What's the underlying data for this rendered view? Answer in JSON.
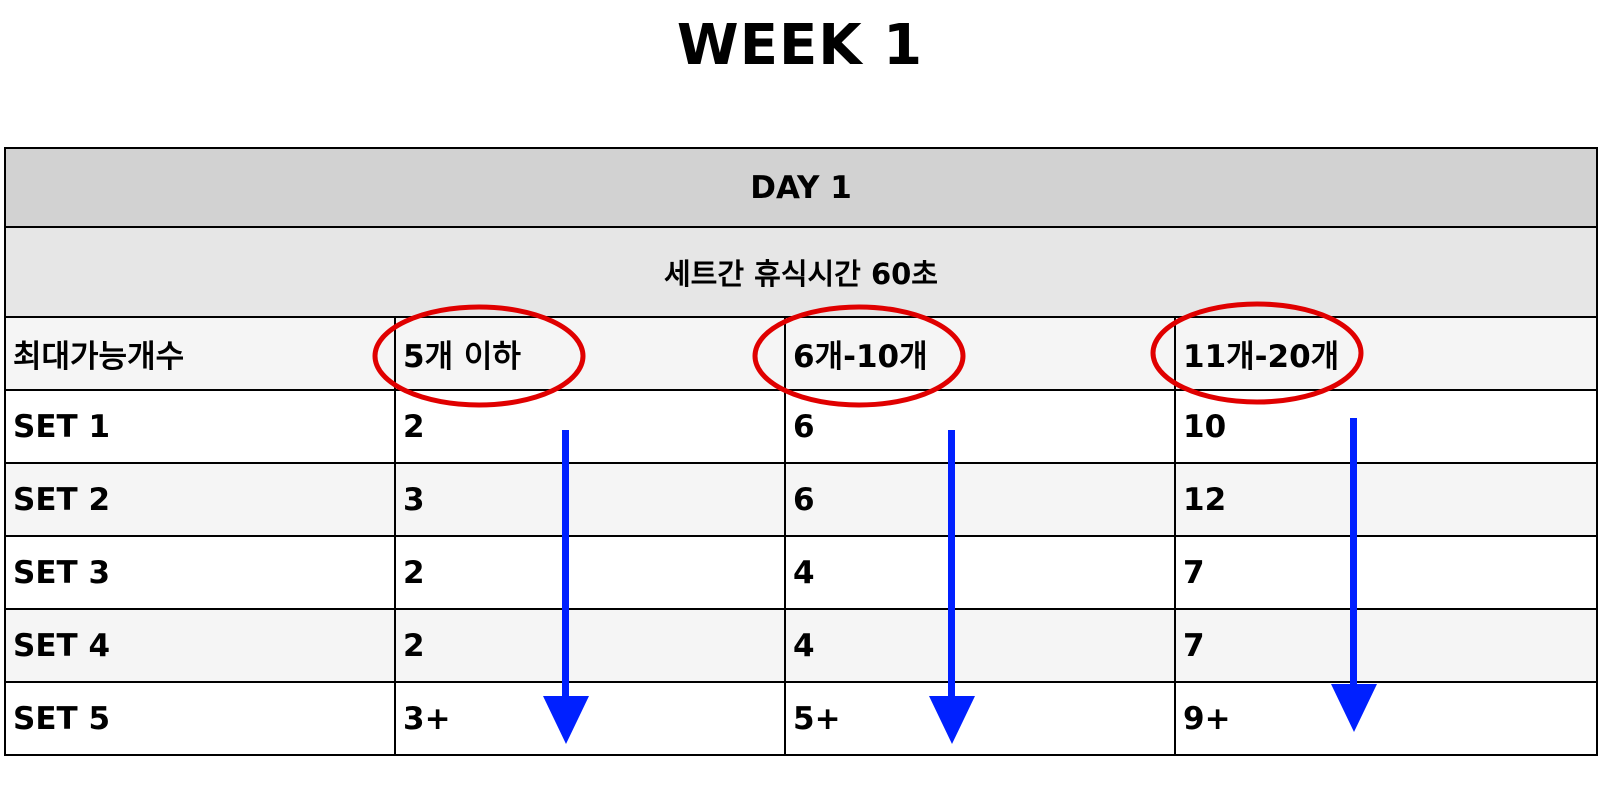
{
  "title": "WEEK 1",
  "day_label": "DAY 1",
  "rest_label": "세트간 휴식시간 60초",
  "header": {
    "label": "최대가능개수",
    "columns": [
      "5개 이하",
      "6개-10개",
      "11개-20개"
    ]
  },
  "sets": [
    {
      "label": "SET 1",
      "values": [
        "2",
        "6",
        "10"
      ]
    },
    {
      "label": "SET 2",
      "values": [
        "3",
        "6",
        "12"
      ]
    },
    {
      "label": "SET 3",
      "values": [
        "2",
        "4",
        "7"
      ]
    },
    {
      "label": "SET 4",
      "values": [
        "2",
        "4",
        "7"
      ]
    },
    {
      "label": "SET 5",
      "values": [
        "3+",
        "5+",
        "9+"
      ]
    }
  ],
  "colors": {
    "annotation_circle": "#e00000",
    "annotation_arrow": "#0020ff"
  }
}
